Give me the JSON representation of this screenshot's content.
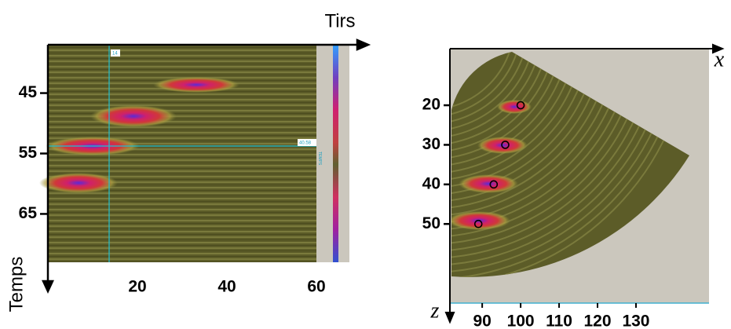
{
  "chart_data": [
    {
      "type": "image",
      "xlabel": "Tirs",
      "ylabel": "Temps",
      "xlim": [
        0,
        60
      ],
      "ylim": [
        37,
        73
      ],
      "xticks": [
        20,
        40,
        60
      ],
      "yticks": [
        45,
        55,
        65
      ],
      "annotations": [
        "14",
        "40.58",
        "TEMPS"
      ]
    },
    {
      "type": "scatter",
      "xlabel": "x",
      "ylabel": "z",
      "xlim": [
        81.6,
        149
      ],
      "ylim": [
        5.7,
        70
      ],
      "xticks": [
        90,
        100,
        110,
        120,
        130
      ],
      "yticks": [
        20,
        30,
        40,
        50
      ],
      "series": [
        {
          "x": [
            100,
            96,
            93,
            89
          ],
          "values": [
            20,
            30,
            40,
            50
          ]
        }
      ]
    }
  ]
}
